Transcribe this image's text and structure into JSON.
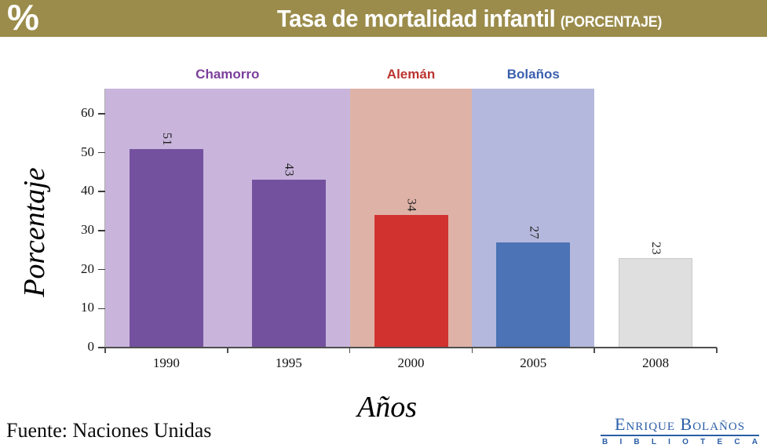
{
  "header": {
    "percent_symbol": "%",
    "title": "Tasa de mortalidad infantil",
    "subtitle": "(PORCENTAJE)",
    "bg_color": "#9b8c4b",
    "text_color": "#ffffff"
  },
  "chart_data": {
    "type": "bar",
    "title": "Tasa de mortalidad infantil (PORCENTAJE)",
    "categories": [
      "1990",
      "1995",
      "2000",
      "2005",
      "2008"
    ],
    "values": [
      51,
      43,
      34,
      27,
      23
    ],
    "bar_colors": [
      "#74519f",
      "#74519f",
      "#d13230",
      "#4b73b5",
      "#dfdfdf"
    ],
    "bar_border_colors": [
      "none",
      "none",
      "none",
      "none",
      "#c9c9c9"
    ],
    "xlabel": "Años",
    "ylabel": "Porcentaje",
    "ylim": [
      0,
      66
    ],
    "yticks": [
      0,
      10,
      20,
      30,
      40,
      50,
      60
    ],
    "grid": false,
    "legend": false,
    "value_labels_rotated": true,
    "regions": [
      {
        "label": "Chamorro",
        "start_category": "1990",
        "end_category": "1995",
        "band_color": "#c9b5dc",
        "label_color": "#7b3f9b"
      },
      {
        "label": "Alemán",
        "start_category": "2000",
        "end_category": "2000",
        "band_color": "#dfb2a7",
        "label_color": "#bb3430"
      },
      {
        "label": "Bolaños",
        "start_category": "2005",
        "end_category": "2005",
        "band_color": "#b5b8dd",
        "label_color": "#3a5fae"
      }
    ]
  },
  "footer": {
    "source": "Fuente: Naciones Unidas",
    "logo_name": "Enrique Bolaños",
    "logo_subtitle": "BIBLIOTECA",
    "logo_color": "#2b5ea7"
  }
}
